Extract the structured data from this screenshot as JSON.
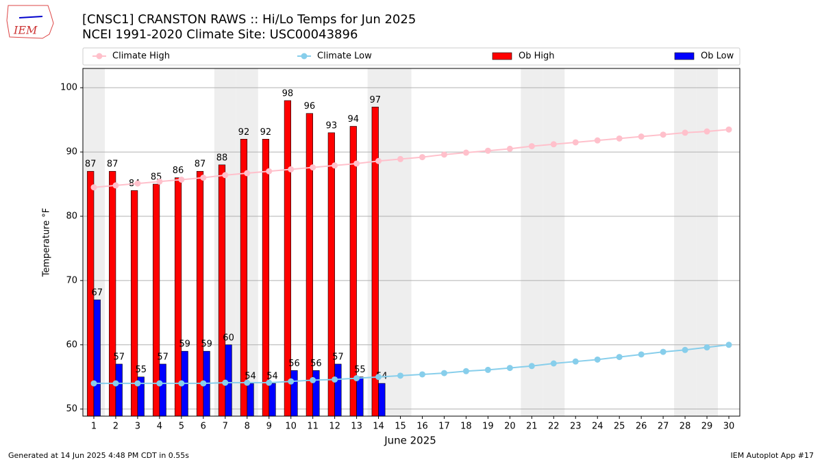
{
  "chart_data": {
    "type": "bar_line",
    "title": "[CNSC1] CRANSTON RAWS :: Hi/Lo Temps for Jun 2025",
    "subtitle": "NCEI 1991-2020 Climate Site: USC00043896",
    "xlabel": "June 2025",
    "ylabel": "Temperature °F",
    "x": [
      1,
      2,
      3,
      4,
      5,
      6,
      7,
      8,
      9,
      10,
      11,
      12,
      13,
      14,
      15,
      16,
      17,
      18,
      19,
      20,
      21,
      22,
      23,
      24,
      25,
      26,
      27,
      28,
      29,
      30
    ],
    "xlim": [
      0.5,
      30.5
    ],
    "xticks": [
      1,
      2,
      3,
      4,
      5,
      6,
      7,
      8,
      9,
      10,
      11,
      12,
      13,
      14,
      15,
      16,
      17,
      18,
      19,
      20,
      21,
      22,
      23,
      24,
      25,
      26,
      27,
      28,
      29,
      30
    ],
    "ylim": [
      48.9,
      103
    ],
    "yticks": [
      50,
      60,
      70,
      80,
      90,
      100
    ],
    "grid": true,
    "shaded_days": [
      1,
      7,
      8,
      14,
      15,
      21,
      22,
      28,
      29
    ],
    "series": [
      {
        "name": "Climate High",
        "mark": "line",
        "color": "#ffc0cb",
        "values": [
          84.5,
          84.8,
          85.1,
          85.4,
          85.7,
          86.0,
          86.4,
          86.7,
          87.0,
          87.3,
          87.6,
          87.9,
          88.2,
          88.6,
          88.9,
          89.2,
          89.6,
          89.9,
          90.2,
          90.5,
          90.9,
          91.2,
          91.5,
          91.8,
          92.1,
          92.4,
          92.7,
          93.0,
          93.2,
          93.5
        ]
      },
      {
        "name": "Climate Low",
        "mark": "line",
        "color": "#87ceeb",
        "values": [
          54.0,
          54.0,
          54.0,
          54.0,
          54.0,
          54.0,
          54.1,
          54.1,
          54.1,
          54.3,
          54.5,
          54.6,
          54.8,
          55.0,
          55.2,
          55.4,
          55.6,
          55.9,
          56.1,
          56.4,
          56.7,
          57.1,
          57.4,
          57.7,
          58.1,
          58.5,
          58.9,
          59.2,
          59.6,
          60.0
        ]
      },
      {
        "name": "Ob High",
        "mark": "bar",
        "color": "#ff0000",
        "values": [
          87,
          87,
          84,
          85,
          86,
          87,
          88,
          92,
          92,
          98,
          96,
          93,
          94,
          97,
          null,
          null,
          null,
          null,
          null,
          null,
          null,
          null,
          null,
          null,
          null,
          null,
          null,
          null,
          null,
          null
        ]
      },
      {
        "name": "Ob Low",
        "mark": "bar",
        "color": "#0000ff",
        "values": [
          67,
          57,
          55,
          57,
          59,
          59,
          60,
          54,
          54,
          56,
          56,
          57,
          55,
          54,
          null,
          null,
          null,
          null,
          null,
          null,
          null,
          null,
          null,
          null,
          null,
          null,
          null,
          null,
          null,
          null
        ]
      }
    ]
  },
  "logo": "IEM",
  "footer_left": "Generated at 14 Jun 2025 4:48 PM CDT in 0.55s",
  "footer_right": "IEM Autoplot App #17"
}
